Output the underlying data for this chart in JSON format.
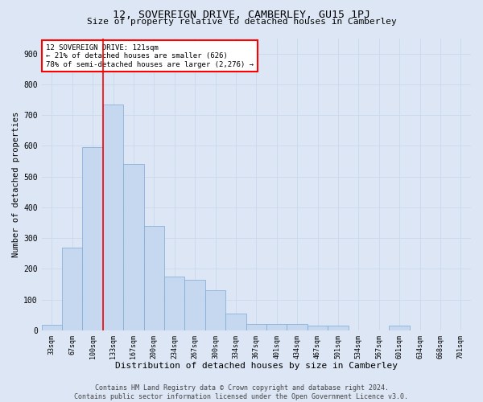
{
  "title": "12, SOVEREIGN DRIVE, CAMBERLEY, GU15 1PJ",
  "subtitle": "Size of property relative to detached houses in Camberley",
  "xlabel": "Distribution of detached houses by size in Camberley",
  "ylabel": "Number of detached properties",
  "categories": [
    "33sqm",
    "67sqm",
    "100sqm",
    "133sqm",
    "167sqm",
    "200sqm",
    "234sqm",
    "267sqm",
    "300sqm",
    "334sqm",
    "367sqm",
    "401sqm",
    "434sqm",
    "467sqm",
    "501sqm",
    "534sqm",
    "567sqm",
    "601sqm",
    "634sqm",
    "668sqm",
    "701sqm"
  ],
  "values": [
    18,
    270,
    595,
    735,
    540,
    340,
    175,
    165,
    130,
    55,
    20,
    20,
    20,
    15,
    15,
    0,
    0,
    15,
    0,
    0,
    0
  ],
  "bar_color": "#c5d8f0",
  "bar_edge_color": "#7aaad4",
  "grid_color": "#c8d8ec",
  "background_color": "#dce6f5",
  "vline_x": 2.5,
  "vline_color": "red",
  "annotation_text": "12 SOVEREIGN DRIVE: 121sqm\n← 21% of detached houses are smaller (626)\n78% of semi-detached houses are larger (2,276) →",
  "annotation_box_color": "white",
  "annotation_box_edge": "red",
  "ylim": [
    0,
    950
  ],
  "yticks": [
    0,
    100,
    200,
    300,
    400,
    500,
    600,
    700,
    800,
    900
  ],
  "footer": "Contains HM Land Registry data © Crown copyright and database right 2024.\nContains public sector information licensed under the Open Government Licence v3.0.",
  "title_fontsize": 9.5,
  "subtitle_fontsize": 8,
  "xlabel_fontsize": 8,
  "ylabel_fontsize": 7.5
}
